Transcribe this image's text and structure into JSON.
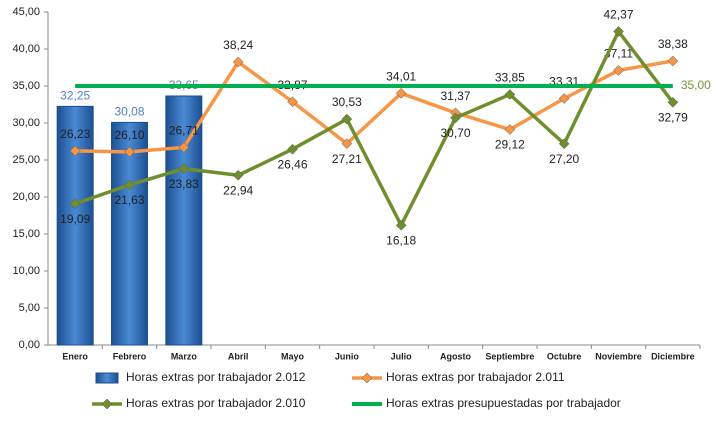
{
  "chart_data": {
    "type": "bar-line",
    "categories": [
      "Enero",
      "Febrero",
      "Marzo",
      "Abril",
      "Mayo",
      "Junio",
      "Julio",
      "Agosto",
      "Septiembre",
      "Octubre",
      "Noviembre",
      "Diciembre"
    ],
    "series": [
      {
        "name": "Horas extras por trabajador 2.012",
        "type": "bar",
        "color": "#2e6db4",
        "values": [
          32.25,
          30.08,
          33.65,
          null,
          null,
          null,
          null,
          null,
          null,
          null,
          null,
          null
        ],
        "value_labels": [
          "32,25",
          "30,08",
          "33,65",
          null,
          null,
          null,
          null,
          null,
          null,
          null,
          null,
          null
        ]
      },
      {
        "name": "Horas extras por trabajador 2.011",
        "type": "line",
        "color": "#f79646",
        "values": [
          26.23,
          26.1,
          26.71,
          38.24,
          32.87,
          27.21,
          34.01,
          31.37,
          29.12,
          33.31,
          37.11,
          38.38
        ],
        "value_labels": [
          "26,23",
          "26,10",
          "26,71",
          "38,24",
          "32,87",
          "27,21",
          "34,01",
          "31,37",
          "29,12",
          "33,31",
          "37,11",
          "38,38"
        ]
      },
      {
        "name": "Horas extras por trabajador 2.010",
        "type": "line",
        "color": "#6f8f2f",
        "values": [
          19.09,
          21.63,
          23.83,
          22.94,
          26.46,
          30.53,
          16.18,
          30.7,
          33.85,
          27.2,
          42.37,
          32.79
        ],
        "value_labels": [
          "19,09",
          "21,63",
          "23,83",
          "22,94",
          "26,46",
          "30,53",
          "16,18",
          "30,70",
          "33,85",
          "27,20",
          "42,37",
          "32,79"
        ]
      },
      {
        "name": "Horas extras presupuestadas por trabajador",
        "type": "flat",
        "color": "#00b050",
        "values": [
          35,
          35,
          35,
          35,
          35,
          35,
          35,
          35,
          35,
          35,
          35,
          35
        ],
        "value_labels": [
          null,
          null,
          null,
          null,
          null,
          null,
          null,
          null,
          null,
          null,
          null,
          "35,00"
        ]
      }
    ],
    "ylim": [
      0,
      45
    ],
    "yticks": [
      {
        "value": 0,
        "label": "0,00"
      },
      {
        "value": 5,
        "label": "5,00"
      },
      {
        "value": 10,
        "label": "10,00"
      },
      {
        "value": 15,
        "label": "15,00"
      },
      {
        "value": 20,
        "label": "20,00"
      },
      {
        "value": 25,
        "label": "25,00"
      },
      {
        "value": 30,
        "label": "30,00"
      },
      {
        "value": 35,
        "label": "35,00"
      },
      {
        "value": 40,
        "label": "40,00"
      },
      {
        "value": 45,
        "label": "45,00"
      }
    ]
  }
}
